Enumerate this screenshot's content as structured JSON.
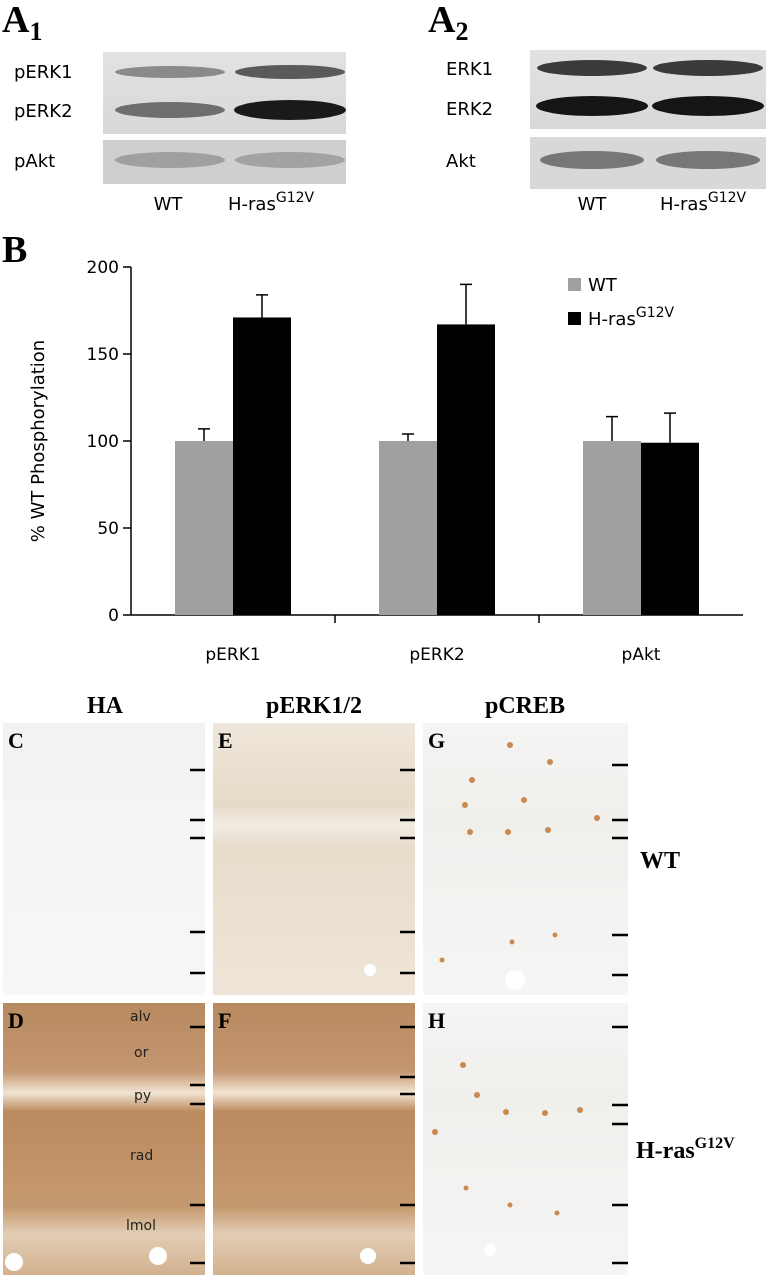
{
  "blots": [
    {
      "letter": "A",
      "sub": "1",
      "rows": [
        "pERK1",
        "pERK2",
        "pAkt"
      ],
      "lanes": [
        "WT",
        "H-ras"
      ],
      "lane_sup": "G12V"
    },
    {
      "letter": "A",
      "sub": "2",
      "rows": [
        "ERK1",
        "ERK2",
        "Akt"
      ],
      "lanes": [
        "WT",
        "H-ras"
      ],
      "lane_sup": "G12V"
    }
  ],
  "chart_data": {
    "type": "bar",
    "panel_label": "B",
    "y_label": "% WT Phosphorylation",
    "categories": [
      "pERK1",
      "pERK2",
      "pAkt"
    ],
    "series": [
      {
        "name": "WT",
        "color": "#a0a0a0",
        "values": [
          100,
          100,
          100
        ],
        "errors": [
          7,
          4,
          14
        ]
      },
      {
        "name": "H-ras",
        "name_sup": "G12V",
        "color": "#000000",
        "values": [
          171,
          167,
          99
        ],
        "errors": [
          13,
          23,
          17
        ]
      }
    ],
    "ylim": [
      0,
      200
    ],
    "yticks": [
      0,
      50,
      100,
      150,
      200
    ],
    "legend": "upper right"
  },
  "micrographs": {
    "columns": [
      "HA",
      "pERK1/2",
      "pCREB"
    ],
    "rows": [
      {
        "label": "WT"
      },
      {
        "label": "H-ras",
        "sup": "G12V"
      }
    ],
    "panel_letters": [
      [
        "C",
        "E",
        "G"
      ],
      [
        "D",
        "F",
        "H"
      ]
    ],
    "layers": [
      "alv",
      "or",
      "py",
      "rad",
      "lmol"
    ]
  }
}
